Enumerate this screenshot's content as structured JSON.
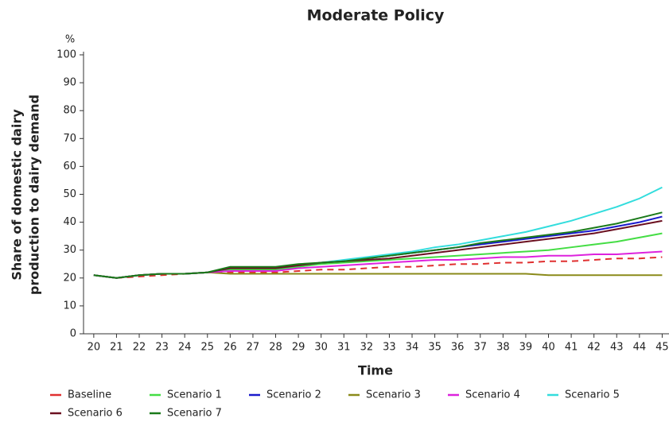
{
  "chart_data": {
    "type": "line",
    "title": "Moderate Policy",
    "x_label": "Time",
    "y_label": [
      "Share of domestic dairy",
      "production to dairy demand"
    ],
    "y_unit": "%",
    "x": [
      20,
      21,
      22,
      23,
      24,
      25,
      26,
      27,
      28,
      29,
      30,
      31,
      32,
      33,
      34,
      35,
      36,
      37,
      38,
      39,
      40,
      41,
      42,
      43,
      44,
      45
    ],
    "xlim": [
      19.55,
      45.3
    ],
    "xticks": [
      20,
      21,
      22,
      23,
      24,
      25,
      26,
      27,
      28,
      29,
      30,
      31,
      32,
      33,
      34,
      35,
      36,
      37,
      38,
      39,
      40,
      41,
      42,
      43,
      44,
      45
    ],
    "ylim": [
      0,
      100
    ],
    "yticks": [
      0,
      10,
      20,
      30,
      40,
      50,
      60,
      70,
      80,
      90,
      100
    ],
    "series": [
      {
        "name": "Baseline",
        "color": "#e03030",
        "style": "dashed",
        "values": [
          21,
          20,
          20.5,
          21,
          21.5,
          22,
          22,
          22,
          22,
          22.5,
          23,
          23,
          23.5,
          24,
          24,
          24.5,
          25,
          25,
          25.5,
          25.5,
          26,
          26,
          26.5,
          27,
          27,
          27.5
        ]
      },
      {
        "name": "Scenario 1",
        "color": "#44dd44",
        "style": "solid",
        "values": [
          21,
          20,
          21,
          21.5,
          21.5,
          22,
          23,
          23,
          23,
          24,
          25,
          25.5,
          26,
          26.5,
          27,
          27.5,
          28,
          28.5,
          29,
          29.5,
          30,
          31,
          32,
          33,
          34.5,
          36
        ]
      },
      {
        "name": "Scenario 2",
        "color": "#1a1acc",
        "style": "solid",
        "values": [
          21,
          20,
          21,
          21.5,
          21.5,
          22,
          23.5,
          23.5,
          23.5,
          24.5,
          25.5,
          26,
          27,
          28,
          29,
          30,
          31,
          32,
          33,
          34,
          35,
          36,
          37,
          38.5,
          40,
          42
        ]
      },
      {
        "name": "Scenario 3",
        "color": "#8a8a1a",
        "style": "solid",
        "values": [
          21,
          20,
          21,
          21.5,
          21.5,
          22,
          21.5,
          21.5,
          21.5,
          21.5,
          21.5,
          21.5,
          21.5,
          21.5,
          21.5,
          21.5,
          21.5,
          21.5,
          21.5,
          21.5,
          21,
          21,
          21,
          21,
          21,
          21
        ]
      },
      {
        "name": "Scenario 4",
        "color": "#dd22dd",
        "style": "solid",
        "values": [
          21,
          20,
          21,
          21.5,
          21.5,
          22,
          22.5,
          22.5,
          22.5,
          23.5,
          24,
          24.5,
          25,
          25.5,
          26,
          26.5,
          26.5,
          27,
          27.5,
          27.5,
          28,
          28,
          28.5,
          28.5,
          29,
          29.5
        ]
      },
      {
        "name": "Scenario 5",
        "color": "#33dddd",
        "style": "solid",
        "values": [
          21,
          20,
          21,
          21.5,
          21.5,
          22,
          23.5,
          23.5,
          23.5,
          24.5,
          25.5,
          26.5,
          27.5,
          28.5,
          29.5,
          31,
          32,
          33.5,
          35,
          36.5,
          38.5,
          40.5,
          43,
          45.5,
          48.5,
          52.5
        ]
      },
      {
        "name": "Scenario 6",
        "color": "#6b1020",
        "style": "solid",
        "values": [
          21,
          20,
          21,
          21.5,
          21.5,
          22,
          23.5,
          23.5,
          23.5,
          24.5,
          25.5,
          26,
          26.5,
          27,
          28,
          29,
          30,
          31,
          32,
          33,
          34,
          35,
          36,
          37.5,
          39,
          40.5
        ]
      },
      {
        "name": "Scenario 7",
        "color": "#1a7a1a",
        "style": "solid",
        "values": [
          21,
          20,
          21,
          21.5,
          21.5,
          22,
          24,
          24,
          24,
          25,
          25.5,
          26,
          27,
          28,
          29,
          30,
          31,
          32.5,
          33.5,
          34.5,
          35.5,
          36.5,
          38,
          39.5,
          41.5,
          43.5
        ]
      }
    ]
  }
}
